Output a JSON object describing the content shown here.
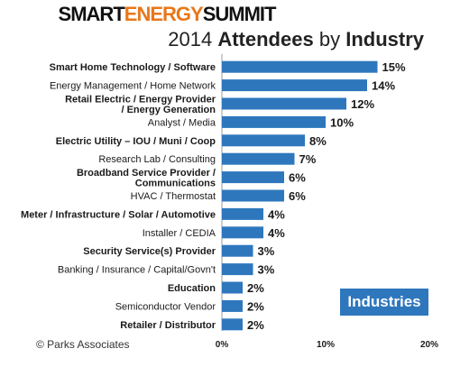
{
  "header": {
    "logo_part1": "SMART",
    "logo_part2": "ENERGY",
    "logo_part3": "SUMMIT",
    "title_year": "2014",
    "title_word1": "Attendees",
    "title_by": "by",
    "title_word2": "Industry"
  },
  "badge": "Industries",
  "credit": "© Parks Associates",
  "colors": {
    "bar": "#2e77bd",
    "logo_accent": "#e8771a"
  },
  "chart_data": {
    "type": "bar",
    "orientation": "horizontal",
    "categories": [
      [
        "Smart Home Technology / Software"
      ],
      [
        "Energy Management / Home Network"
      ],
      [
        "Retail Electric / Energy Provider",
        "/ Energy Generation"
      ],
      [
        "Analyst / Media"
      ],
      [
        "Electric Utility – IOU / Muni / Coop"
      ],
      [
        "Research Lab / Consulting"
      ],
      [
        "Broadband Service Provider /",
        "Communications"
      ],
      [
        "HVAC / Thermostat"
      ],
      [
        "Meter / Infrastructure / Solar / Automotive"
      ],
      [
        "Installer / CEDIA"
      ],
      [
        "Security Service(s) Provider"
      ],
      [
        "Banking / Insurance / Capital/Govn't"
      ],
      [
        "Education"
      ],
      [
        "Semiconductor Vendor"
      ],
      [
        "Retailer / Distributor"
      ]
    ],
    "bold": [
      true,
      false,
      true,
      false,
      true,
      false,
      true,
      false,
      true,
      false,
      true,
      false,
      true,
      false,
      true
    ],
    "values": [
      15,
      14,
      12,
      10,
      8,
      7,
      6,
      6,
      4,
      4,
      3,
      3,
      2,
      2,
      2
    ],
    "value_labels": [
      "15%",
      "14%",
      "12%",
      "10%",
      "8%",
      "7%",
      "6%",
      "6%",
      "4%",
      "4%",
      "3%",
      "3%",
      "2%",
      "2%",
      "2%"
    ],
    "x_ticks": [
      "0%",
      "10%",
      "20%"
    ],
    "xlim": [
      0,
      20
    ],
    "legend": "none",
    "grid": false
  }
}
